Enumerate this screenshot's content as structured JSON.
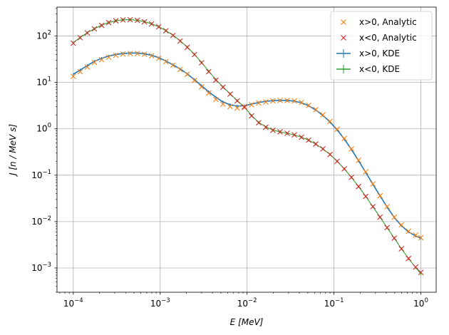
{
  "chart_data": {
    "type": "line",
    "xscale": "log",
    "yscale": "log",
    "xlim": [
      6.5e-05,
      1.5
    ],
    "ylim": [
      0.0003,
      420
    ],
    "grid": true,
    "xlabel": "E [MeV]",
    "ylabel": "J [n / MeV s]",
    "legend_position": "top-right",
    "x_ticks": [
      {
        "base": "10",
        "exp": "−4",
        "value": 0.0001
      },
      {
        "base": "10",
        "exp": "−3",
        "value": 0.001
      },
      {
        "base": "10",
        "exp": "−2",
        "value": 0.01
      },
      {
        "base": "10",
        "exp": "−1",
        "value": 0.1
      },
      {
        "base": "10",
        "exp": "0",
        "value": 1
      }
    ],
    "y_ticks": [
      {
        "base": "10",
        "exp": "−3",
        "value": 0.001
      },
      {
        "base": "10",
        "exp": "−2",
        "value": 0.01
      },
      {
        "base": "10",
        "exp": "−1",
        "value": 0.1
      },
      {
        "base": "10",
        "exp": "0",
        "value": 1
      },
      {
        "base": "10",
        "exp": "1",
        "value": 10
      },
      {
        "base": "10",
        "exp": "2",
        "value": 100
      }
    ],
    "x": [
      0.0001,
      0.00012,
      0.000145,
      0.000175,
      0.000212,
      0.000256,
      0.000309,
      0.000373,
      0.000451,
      0.000546,
      0.000659,
      0.000796,
      0.000962,
      0.001162,
      0.001404,
      0.001697,
      0.00205,
      0.002477,
      0.002993,
      0.003616,
      0.004369,
      0.005278,
      0.006377,
      0.007705,
      0.009309,
      0.011247,
      0.013589,
      0.016418,
      0.019836,
      0.023966,
      0.028955,
      0.034983,
      0.042267,
      0.051067,
      0.061699,
      0.074544,
      0.090064,
      0.108815,
      0.131469,
      0.158841,
      0.19191,
      0.231864,
      0.280136,
      0.338458,
      0.408922,
      0.494055,
      0.596913,
      0.721186,
      0.871332,
      1.0
    ],
    "series": [
      {
        "name": "x>0, Analytic",
        "color": "#ff7f0e",
        "marker": "x",
        "values": [
          13.5,
          17,
          21.5,
          27,
          31,
          35,
          38.5,
          41,
          42,
          42,
          40.5,
          37.5,
          33,
          28,
          23.5,
          19,
          15,
          11,
          8,
          5.9,
          4.3,
          3.4,
          3.0,
          2.8,
          3.0,
          3.3,
          3.6,
          3.8,
          4.0,
          4.1,
          4.1,
          4.0,
          3.7,
          3.2,
          2.6,
          2.0,
          1.45,
          0.98,
          0.62,
          0.37,
          0.21,
          0.118,
          0.065,
          0.036,
          0.021,
          0.0125,
          0.0085,
          0.0062,
          0.0051,
          0.0045
        ]
      },
      {
        "name": "x<0, Analytic",
        "color": "#d62728",
        "marker": "x",
        "values": [
          70,
          92,
          117,
          143,
          170,
          195,
          213,
          223,
          225,
          218,
          203,
          183,
          158,
          130,
          103,
          78,
          57,
          40,
          26.5,
          17,
          11.2,
          7.9,
          5.6,
          4.0,
          2.9,
          1.9,
          1.35,
          1.08,
          0.93,
          0.86,
          0.8,
          0.74,
          0.66,
          0.57,
          0.47,
          0.37,
          0.28,
          0.2,
          0.137,
          0.09,
          0.057,
          0.035,
          0.021,
          0.0125,
          0.0074,
          0.0044,
          0.0026,
          0.0016,
          0.00105,
          0.0008
        ]
      },
      {
        "name": "x>0, KDE",
        "color": "#1f77b4",
        "style": "line",
        "values": [
          15,
          18.5,
          23,
          28.5,
          33,
          37,
          40,
          42,
          43,
          43,
          41.5,
          38.5,
          34,
          29,
          24,
          19.5,
          15.3,
          11.5,
          8.5,
          6.3,
          4.8,
          3.8,
          3.3,
          3.1,
          3.15,
          3.4,
          3.7,
          3.9,
          4.05,
          4.1,
          4.1,
          3.95,
          3.65,
          3.15,
          2.55,
          1.95,
          1.4,
          0.95,
          0.6,
          0.36,
          0.205,
          0.115,
          0.064,
          0.036,
          0.0205,
          0.0123,
          0.0082,
          0.006,
          0.0049,
          0.0044
        ]
      },
      {
        "name": "x<0, KDE",
        "color": "#2ca02c",
        "style": "line",
        "values": [
          72,
          93,
          118,
          144,
          171,
          196,
          214,
          224,
          226,
          219,
          204,
          184,
          159,
          131,
          104,
          79,
          58,
          40.5,
          27,
          17.5,
          11.5,
          8.0,
          5.7,
          4.05,
          2.95,
          1.95,
          1.38,
          1.1,
          0.94,
          0.86,
          0.8,
          0.74,
          0.66,
          0.57,
          0.47,
          0.37,
          0.28,
          0.2,
          0.137,
          0.09,
          0.057,
          0.035,
          0.021,
          0.0125,
          0.0074,
          0.0044,
          0.0026,
          0.0016,
          0.00102,
          0.00075
        ]
      }
    ]
  }
}
